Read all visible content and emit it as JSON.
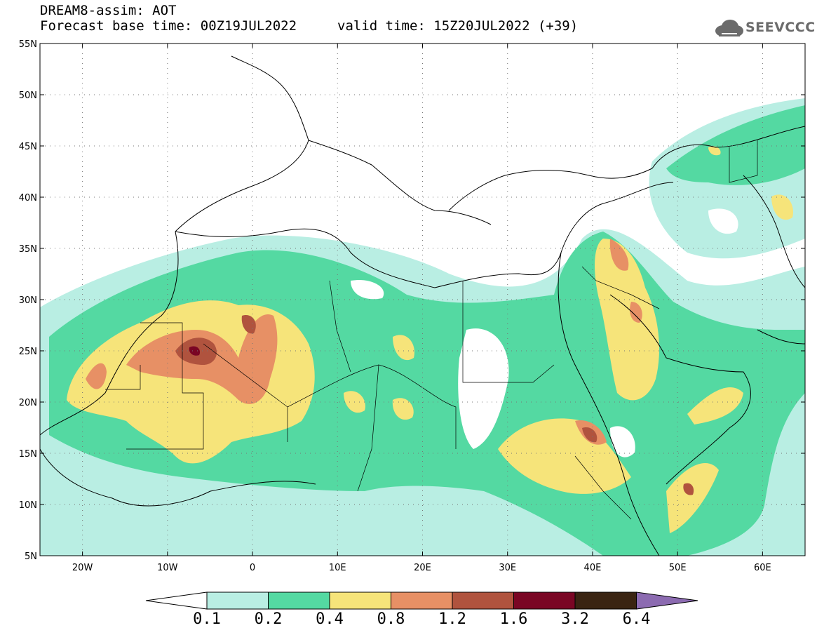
{
  "header": {
    "line1": "DREAM8-assim: AOT",
    "line2": "Forecast base time: 00Z19JUL2022",
    "valid": "valid time: 15Z20JUL2022 (+39)",
    "logo_text": "SEEVCCC",
    "logo_icon": "cloud-icon"
  },
  "axes": {
    "lat_labels": [
      "55N",
      "50N",
      "45N",
      "40N",
      "35N",
      "30N",
      "25N",
      "20N",
      "15N",
      "10N",
      "5N"
    ],
    "lon_labels": [
      "20W",
      "10W",
      "0",
      "10E",
      "20E",
      "30E",
      "40E",
      "50E",
      "60E"
    ]
  },
  "colorbar": {
    "labels": [
      "0.1",
      "0.2",
      "0.4",
      "0.8",
      "1.2",
      "1.6",
      "3.2",
      "6.4"
    ],
    "colors": [
      "#ffffff",
      "#b9eee3",
      "#54d9a2",
      "#f6e47a",
      "#e79065",
      "#b0533e",
      "#7a0624",
      "#3a2412",
      "#8c6bb1"
    ]
  },
  "map_colors": {
    "land": "#ffffff",
    "aot_01": "#b9eee3",
    "aot_02": "#54d9a2",
    "aot_04": "#f6e47a",
    "aot_08": "#e79065",
    "aot_12": "#b0533e",
    "aot_16": "#7a0624"
  }
}
